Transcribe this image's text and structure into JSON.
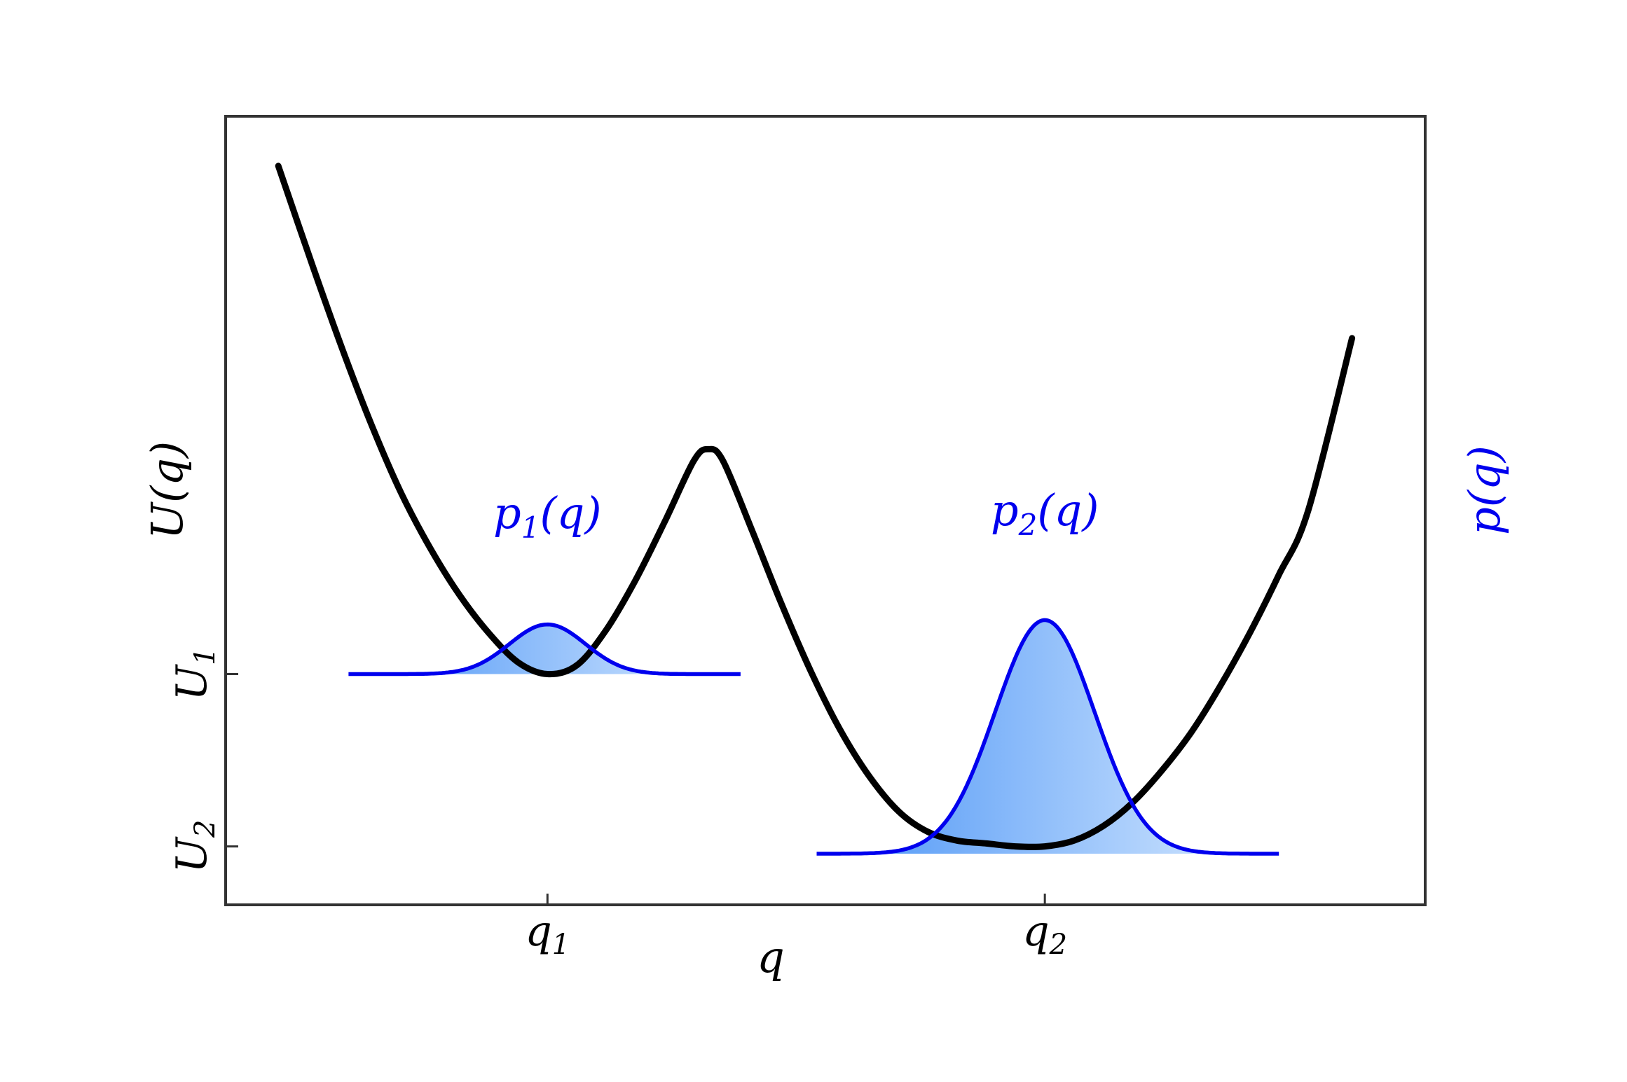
{
  "chart_data": {
    "type": "line",
    "title": "",
    "xlabel": "q",
    "ylabel_left": "U(q)",
    "ylabel_right": "p(q)",
    "xlim": [
      -1.6,
      2.5
    ],
    "ylim": [
      -0.2,
      2.5
    ],
    "x_ticks": [
      {
        "value": -0.5,
        "label": "q",
        "sub": "1"
      },
      {
        "value": 1.2,
        "label": "q",
        "sub": "2"
      }
    ],
    "y_ticks": [
      {
        "value": 0.59,
        "label": "U",
        "sub": "1"
      },
      {
        "value": 0,
        "label": "U",
        "sub": "2"
      }
    ],
    "potential": {
      "name": "U(q)",
      "color": "#000000",
      "x": [
        -1.42,
        -1.3,
        -1.2,
        -1.1,
        -1.0,
        -0.9,
        -0.8,
        -0.7,
        -0.6,
        -0.5,
        -0.4,
        -0.3,
        -0.2,
        -0.1,
        0.0,
        0.05,
        0.1,
        0.2,
        0.3,
        0.4,
        0.5,
        0.6,
        0.7,
        0.8,
        0.9,
        1.0,
        1.1,
        1.2,
        1.3,
        1.4,
        1.5,
        1.6,
        1.7,
        1.8,
        1.9,
        2.0,
        2.1,
        2.25
      ],
      "y": [
        2.33,
        1.98,
        1.7,
        1.44,
        1.21,
        1.02,
        0.86,
        0.73,
        0.63,
        0.59,
        0.62,
        0.74,
        0.91,
        1.11,
        1.32,
        1.36,
        1.32,
        1.08,
        0.83,
        0.6,
        0.4,
        0.24,
        0.12,
        0.05,
        0.02,
        0.01,
        0.0,
        0.0,
        0.02,
        0.07,
        0.15,
        0.26,
        0.39,
        0.55,
        0.73,
        0.93,
        1.15,
        1.74
      ]
    },
    "distributions": [
      {
        "name": "p₁(q)",
        "label_main": "p",
        "label_sub": "1",
        "label_tail": "(q)",
        "color": "#0000ee",
        "fill": "#66aaff",
        "center": -0.5,
        "sigma": 0.13,
        "baseline": 0.59,
        "peak": 0.17,
        "x_range": [
          -1.18,
          0.16
        ],
        "label_x": -0.5,
        "label_y": 1.09
      },
      {
        "name": "p₂(q)",
        "label_main": "p",
        "label_sub": "2",
        "label_tail": "(q)",
        "color": "#0000ee",
        "fill": "#66aaff",
        "center": 1.2,
        "sigma": 0.17,
        "baseline": -0.025,
        "peak": 0.8,
        "x_range": [
          0.42,
          2.0
        ],
        "label_x": 1.2,
        "label_y": 1.1
      }
    ],
    "grid": false,
    "legend": "none"
  }
}
